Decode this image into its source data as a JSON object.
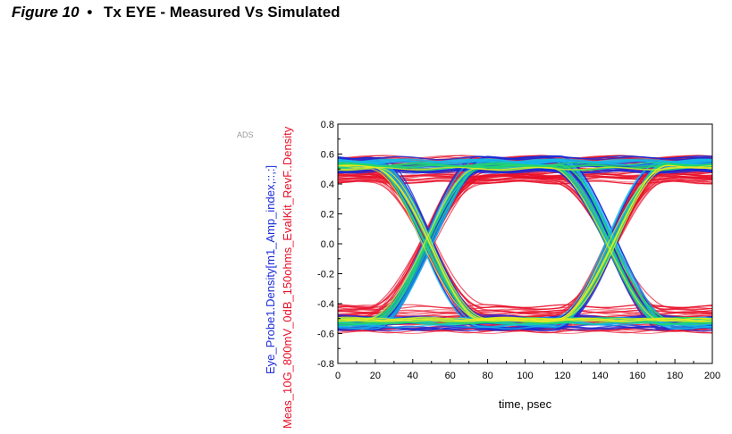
{
  "caption": {
    "figure": "Figure 10",
    "bullet": "•",
    "title": "Tx EYE - Measured Vs Simulated"
  },
  "chart_data": {
    "type": "eye-diagram",
    "watermark": "ADS",
    "xlabel": "time, psec",
    "ylabel_measured": "Meas_10G_800mV_0dB_150ohms_EvalKit_RevF..Density",
    "ylabel_simulated": "Eye_Probe1.Density[m1_Amp_index,::,:]",
    "xlim": [
      0,
      200
    ],
    "ylim": [
      -0.8,
      0.8
    ],
    "xticks": [
      "0",
      "20",
      "40",
      "60",
      "80",
      "100",
      "120",
      "140",
      "160",
      "180",
      "200"
    ],
    "yticks": [
      "0.8",
      "0.6",
      "0.4",
      "0.2",
      "0.0",
      "-0.2",
      "-0.4",
      "-0.6",
      "-0.8"
    ],
    "crossings_psec": [
      48,
      146
    ],
    "unit_interval_psec": 98,
    "series": [
      {
        "name": "Meas_10G_800mV_0dB_150ohms_EvalKit_RevF..Density",
        "color": "#e8102a",
        "high_level": 0.5,
        "low_level": -0.5,
        "spread": 0.09
      },
      {
        "name": "Eye_Probe1.Density[m1_Amp_index,::,:]",
        "color": "#1a2ad8",
        "high_level": 0.53,
        "low_level": -0.53,
        "spread": 0.05
      }
    ],
    "density_colors": [
      "#1a2ad8",
      "#16b8e8",
      "#22d86a",
      "#e8e820",
      "#e8102a"
    ]
  }
}
